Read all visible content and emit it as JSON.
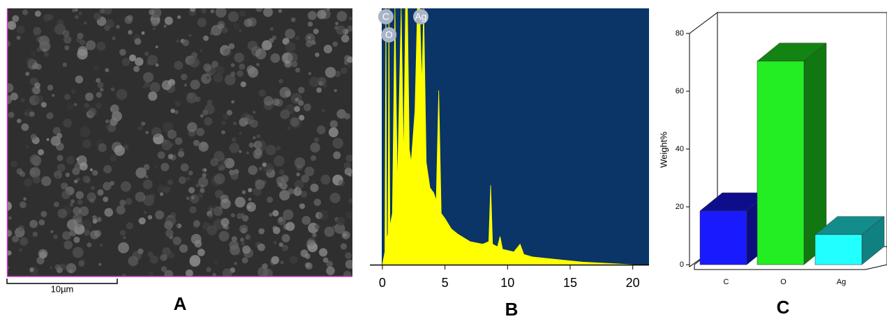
{
  "figure": {
    "panel_labels": [
      "A",
      "B",
      "C"
    ],
    "scale_bar": "10µm"
  },
  "chart_data": [
    {
      "type": "spectrum",
      "color": "#ffff00",
      "background": "#0a3566",
      "x": [
        0,
        0.2,
        0.28,
        0.35,
        0.45,
        0.52,
        0.6,
        0.8,
        1.0,
        1.2,
        1.5,
        1.7,
        1.85,
        2.0,
        2.15,
        2.3,
        2.6,
        2.8,
        2.98,
        3.15,
        3.3,
        3.5,
        3.8,
        4.1,
        4.3,
        4.5,
        4.7,
        5.0,
        5.5,
        6.0,
        7.0,
        8.0,
        8.5,
        8.65,
        8.8,
        9.2,
        9.4,
        9.6,
        10.5,
        11.0,
        11.3,
        12,
        14,
        16,
        18,
        20
      ],
      "values": [
        0,
        5,
        100,
        10,
        12,
        100,
        15,
        20,
        100,
        30,
        100,
        40,
        100,
        100,
        45,
        40,
        60,
        100,
        100,
        70,
        100,
        40,
        30,
        28,
        25,
        68,
        20,
        18,
        14,
        12,
        9,
        8,
        9,
        31,
        8,
        7,
        11,
        6,
        5,
        8,
        4,
        3,
        2,
        1,
        0.5,
        0
      ],
      "xlim": [
        -1,
        21.3
      ],
      "ylim": [
        0,
        100
      ],
      "xticks": [
        0,
        5,
        10,
        15,
        20
      ],
      "peak_labels": [
        {
          "text": "C",
          "x": 0.28
        },
        {
          "text": "O",
          "x": 0.52
        },
        {
          "text": "Ag",
          "x": 3.07
        }
      ]
    },
    {
      "type": "bar3d",
      "ylabel": "Weight%",
      "categories": [
        "C",
        "O",
        "Ag"
      ],
      "values": [
        18.6,
        70.4,
        10.4
      ],
      "colors": [
        "#1a1aff",
        "#22ee22",
        "#22ffff"
      ],
      "ylim": [
        0,
        80
      ],
      "yticks": [
        0,
        20,
        40,
        60,
        80
      ]
    }
  ]
}
